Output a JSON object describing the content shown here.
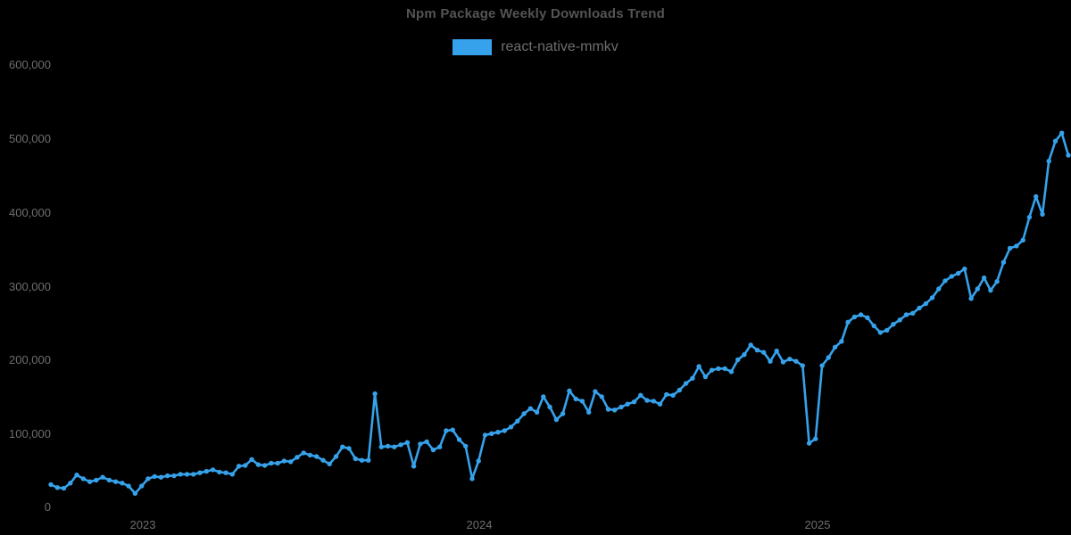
{
  "title": "Npm Package Weekly Downloads Trend",
  "legend": {
    "label": "react-native-mmkv",
    "color": "#36A2EB"
  },
  "colors": {
    "background": "#000000",
    "line": "#36A2EB",
    "axis_text": "#6e6e6e",
    "title_text": "#545454"
  },
  "y_axis": {
    "min": 0,
    "max": 600000,
    "tick_labels": [
      "600,000",
      "500,000",
      "400,000",
      "300,000",
      "200,000",
      "100,000",
      "0"
    ]
  },
  "x_axis": {
    "tick_labels": [
      "2023",
      "2024",
      "2025"
    ]
  },
  "chart_data": {
    "type": "line",
    "title": "Npm Package Weekly Downloads Trend",
    "legend_position": "top",
    "grid": false,
    "ylim": [
      0,
      600000
    ],
    "y_tick_step": 100000,
    "x_year_tick_labels": [
      "2023",
      "2024",
      "2025"
    ],
    "year_start_indices": [
      14,
      66,
      118
    ],
    "interval": "weekly",
    "series": [
      {
        "name": "react-native-mmkv",
        "unit": "downloads per week",
        "values": [
          32000,
          28000,
          27000,
          34000,
          45000,
          40000,
          36000,
          38000,
          42000,
          38000,
          36000,
          34000,
          30000,
          20000,
          30000,
          40000,
          43000,
          42000,
          44000,
          44000,
          46000,
          46000,
          46000,
          48000,
          50000,
          52000,
          49000,
          48000,
          46000,
          57000,
          58000,
          66000,
          59000,
          58000,
          61000,
          61000,
          64000,
          63000,
          69000,
          75000,
          72000,
          70000,
          65000,
          60000,
          70000,
          83000,
          81000,
          67000,
          65000,
          65000,
          155000,
          83000,
          84000,
          83000,
          86000,
          89000,
          57000,
          87000,
          90000,
          79000,
          83000,
          105000,
          106000,
          93000,
          84000,
          40000,
          64000,
          99000,
          101000,
          103000,
          105000,
          110000,
          118000,
          128000,
          135000,
          130000,
          151000,
          137000,
          120000,
          128000,
          159000,
          148000,
          145000,
          130000,
          158000,
          151000,
          134000,
          133000,
          137000,
          141000,
          144000,
          153000,
          146000,
          145000,
          141000,
          154000,
          153000,
          160000,
          169000,
          176000,
          192000,
          178000,
          187000,
          189000,
          189000,
          185000,
          201000,
          208000,
          221000,
          214000,
          211000,
          199000,
          213000,
          198000,
          202000,
          199000,
          193000,
          88000,
          94000,
          193000,
          204000,
          218000,
          226000,
          252000,
          259000,
          262000,
          258000,
          247000,
          238000,
          241000,
          249000,
          255000,
          262000,
          264000,
          271000,
          277000,
          285000,
          297000,
          308000,
          314000,
          318000,
          324000,
          284000,
          297000,
          312000,
          295000,
          307000,
          333000,
          352000,
          355000,
          363000,
          394000,
          422000,
          398000,
          470000,
          497000,
          508000,
          478000
        ]
      }
    ]
  }
}
